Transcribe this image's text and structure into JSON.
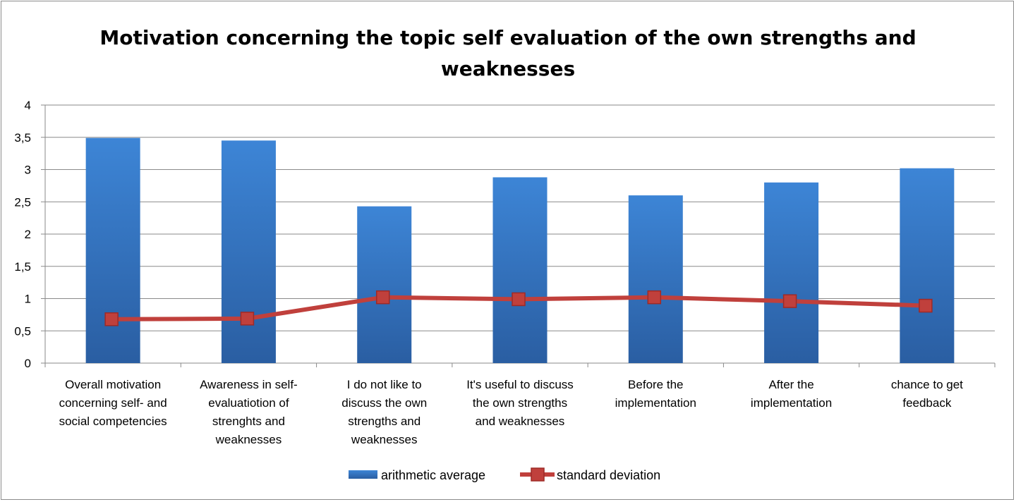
{
  "chart_data": {
    "type": "bar",
    "title": "Motivation concerning the topic self evaluation of the own strengths and weaknesses",
    "ylim": [
      0,
      4
    ],
    "yticks": [
      "0",
      "0,5",
      "1",
      "1,5",
      "2",
      "2,5",
      "3",
      "3,5",
      "4"
    ],
    "grid": true,
    "legend_position": "bottom",
    "categories": [
      [
        "Overall motivation",
        "concerning self- and",
        "social competencies"
      ],
      [
        "Awareness in self-",
        "evaluatiotion of",
        "strenghts and",
        "weaknesses"
      ],
      [
        "I do not like to",
        "discuss the own",
        "strengths and",
        "weaknesses"
      ],
      [
        "It's useful to discuss",
        "the own strengths",
        "and weaknesses"
      ],
      [
        "Before the",
        "implementation"
      ],
      [
        "After the",
        "implementation"
      ],
      [
        "chance to get",
        "feedback"
      ]
    ],
    "series": [
      {
        "name": "arithmetic average",
        "type": "bar",
        "color": "#3a7fd0",
        "values": [
          3.49,
          3.45,
          2.43,
          2.88,
          2.6,
          2.8,
          3.02
        ]
      },
      {
        "name": "standard deviation",
        "type": "line",
        "color": "#c0403c",
        "values": [
          0.68,
          0.69,
          1.02,
          0.99,
          1.02,
          0.96,
          0.89
        ]
      }
    ]
  }
}
